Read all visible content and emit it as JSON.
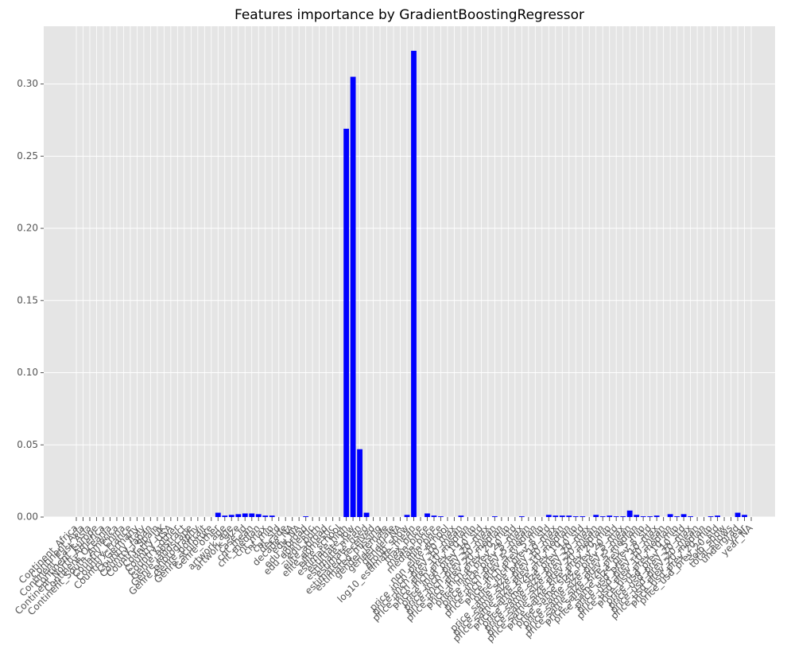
{
  "chart_data": {
    "type": "bar",
    "title": "Features importance by GradientBoostingRegressor",
    "color": "#0000ff",
    "grid": true,
    "categories": [
      "Continent_Africa",
      "Continent_Asia",
      "Continent_East_Asia",
      "Continent_Europe",
      "Continent_North_America",
      "Continent_Oceania",
      "Continent_South_America",
      "Country_China",
      "Country_France",
      "Country_Germany",
      "Country_Italy",
      "Country_Japan",
      "Country_Spain",
      "Country_UK",
      "Country_USA",
      "Country_other",
      "Genre_abstract",
      "Genre_landscape",
      "Genre_photography",
      "Genre_portrait",
      "Genre_sculpture",
      "Genre_other",
      "age",
      "artwork_age",
      "artwork_size",
      "case_id",
      "cnt_mean",
      "cnt_median",
      "cnt_max",
      "cnt_min",
      "cnt_std",
      "decade",
      "decade_NA",
      "edu_NA",
      "edu_abroad",
      "edu_domestic",
      "edu_both",
      "elite_abroad",
      "elite_domestic",
      "elite_school",
      "estimate_high",
      "estimate_low",
      "estimate_mean",
      "estimate_used",
      "estimated_received",
      "estimated_missing",
      "gender_female",
      "gender_male",
      "gender_NA",
      "group_show",
      "log10_estimate_mean",
      "max_price",
      "mean_price",
      "median_price",
      "min_price",
      "non_elite_school",
      "price_inch_prev_10_max",
      "price_inch_prev_10_mean",
      "price_inch_prev_10_median",
      "price_inch_prev_10_min",
      "price_inch_prev_10_std",
      "price_inch_prev_20_max",
      "price_inch_prev_20_mean",
      "price_inch_prev_20_median",
      "price_inch_prev_20_min",
      "price_inch_prev_20_std",
      "price_inch_prev_5_max",
      "price_inch_prev_5_mean",
      "price_inch_prev_5_median",
      "price_inch_prev_5_min",
      "price_inch_prev_5_std",
      "price_same_size_prev_10_max",
      "price_same_size_prev_10_mean",
      "price_same_size_prev_10_median",
      "price_same_size_prev_10_min",
      "price_same_size_prev_10_std",
      "price_same_size_prev_20_max",
      "price_same_size_prev_20_mean",
      "price_same_size_prev_20_median",
      "price_same_size_prev_20_min",
      "price_same_size_prev_20_std",
      "price_same_size_prev_5_max",
      "price_same_size_prev_5_mean",
      "price_same_size_prev_5_median",
      "price_same_size_prev_5_min",
      "price_same_size_prev_5_std",
      "price_usd_prev_10_max",
      "price_usd_prev_10_mean",
      "price_usd_prev_10_median",
      "price_usd_prev_10_min",
      "price_usd_prev_10_std",
      "price_usd_prev_20_max",
      "price_usd_prev_20_mean",
      "price_usd_prev_20_median",
      "price_usd_prev_20_min",
      "price_usd_prev_20_std",
      "solo_show",
      "total_shows",
      "undergrad",
      "year",
      "year_NA"
    ],
    "values": [
      0,
      0,
      0,
      0,
      0,
      0,
      0,
      0,
      0,
      0,
      0,
      0,
      0,
      0,
      0,
      0,
      0,
      0,
      0,
      0,
      0,
      0.003,
      0.001,
      0.0015,
      0.002,
      0.0025,
      0.0025,
      0.002,
      0.001,
      0.001,
      0,
      0,
      0,
      0,
      0.0005,
      0,
      0,
      0,
      0,
      0,
      0.269,
      0.305,
      0.047,
      0.003,
      0,
      0,
      0,
      0,
      0,
      0.0015,
      0.323,
      0,
      0.0025,
      0.001,
      0.0005,
      0,
      0,
      0.001,
      0,
      0,
      0,
      0,
      0.0005,
      0,
      0,
      0,
      0.0005,
      0,
      0,
      0,
      0.0015,
      0.001,
      0.001,
      0.001,
      0.0005,
      0.0005,
      0,
      0.0015,
      0.0005,
      0.001,
      0.0005,
      0.0005,
      0.0045,
      0.0015,
      0.0005,
      0.0005,
      0.001,
      0,
      0.002,
      0.0005,
      0.002,
      0.0005,
      0,
      0,
      0.0005,
      0.001,
      0,
      0,
      0.003,
      0.0015,
      0
    ],
    "ylim": [
      0,
      0.34
    ],
    "yticks": [
      {
        "value": 0,
        "label": "0.00"
      },
      {
        "value": 0.05,
        "label": "0.05"
      },
      {
        "value": 0.1,
        "label": "0.10"
      },
      {
        "value": 0.15,
        "label": "0.15"
      },
      {
        "value": 0.2,
        "label": "0.20"
      },
      {
        "value": 0.25,
        "label": "0.25"
      },
      {
        "value": 0.3,
        "label": "0.30"
      }
    ]
  }
}
